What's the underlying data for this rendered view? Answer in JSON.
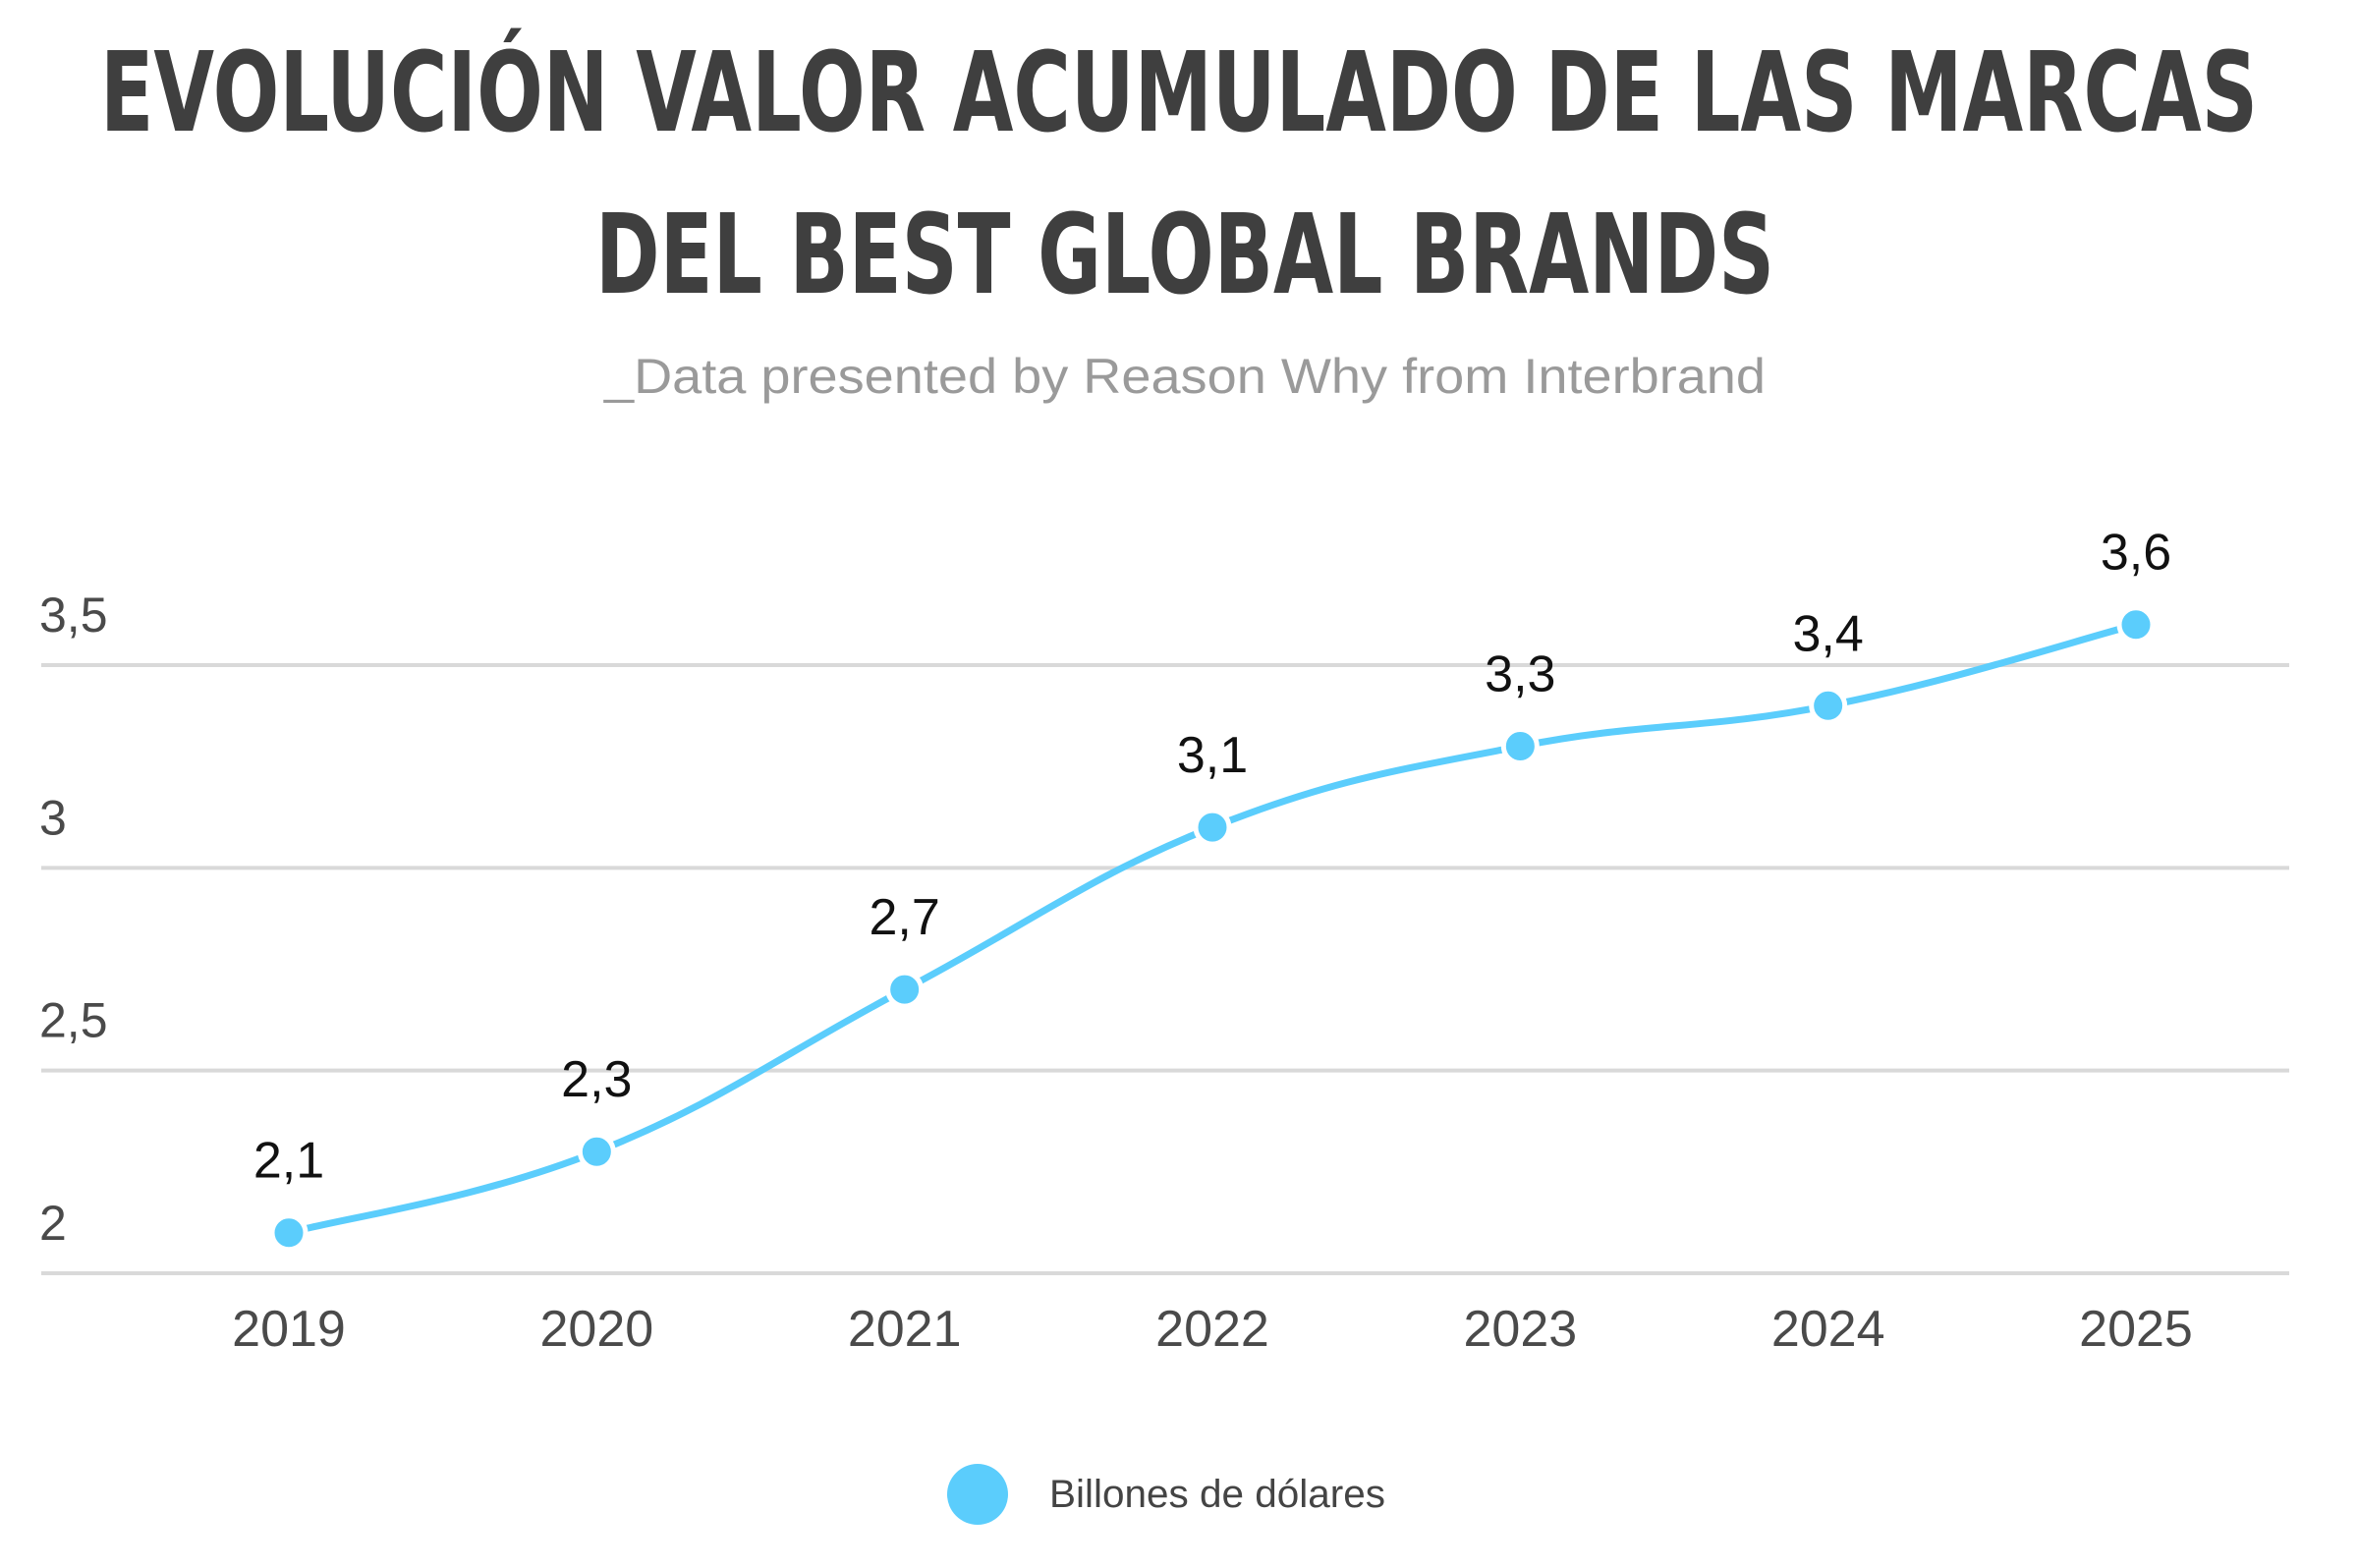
{
  "chart_data": {
    "type": "line",
    "title_lines": [
      "EVOLUCIÓN VALOR ACUMULADO DE LAS MARCAS",
      "DEL BEST GLOBAL BRANDS"
    ],
    "subtitle": "_Data presented by Reason Why from Interbrand",
    "categories": [
      "2019",
      "2020",
      "2021",
      "2022",
      "2023",
      "2024",
      "2025"
    ],
    "series": [
      {
        "name": "Billones de dólares",
        "values": [
          2.1,
          2.3,
          2.7,
          3.1,
          3.3,
          3.4,
          3.6
        ],
        "labels": [
          "2,1",
          "2,3",
          "2,7",
          "3,1",
          "3,3",
          "3,4",
          "3,6"
        ],
        "color": "#5bcdfc"
      }
    ],
    "yticks": [
      {
        "value": 2,
        "label": "2"
      },
      {
        "value": 2.5,
        "label": "2,5"
      },
      {
        "value": 3,
        "label": "3"
      },
      {
        "value": 3.5,
        "label": "3,5"
      }
    ],
    "ylim": [
      2,
      3.5
    ],
    "grid": true,
    "gridColor": "#d9d9d9",
    "legend_position": "bottom",
    "legend_label": "Billones de dólares"
  }
}
